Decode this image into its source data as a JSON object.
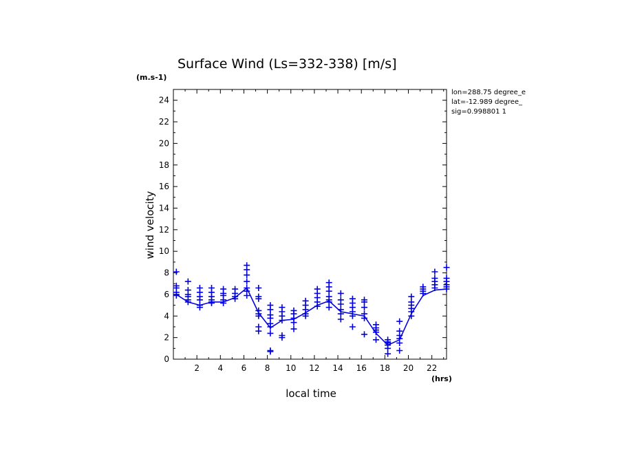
{
  "chart_data": {
    "type": "line",
    "title": "Surface Wind  (Ls=332-338) [m/s]",
    "y_unit": "(m.s-1)",
    "x_unit": "(hrs)",
    "xlabel": "local time",
    "ylabel": "wind velocity",
    "xlim": [
      0,
      23.25
    ],
    "ylim": [
      0,
      25
    ],
    "xticks": [
      2,
      4,
      6,
      8,
      10,
      12,
      14,
      16,
      18,
      20,
      22
    ],
    "yticks": [
      0,
      2,
      4,
      6,
      8,
      10,
      12,
      14,
      16,
      18,
      20,
      22,
      24
    ],
    "info_lines": [
      "lon=288.75 degree_e",
      "lat=-12.989 degree_",
      "sig=0.998801 1"
    ],
    "color": "#0000e0",
    "series": [
      {
        "name": "mean",
        "x": [
          0.25,
          1.25,
          2.25,
          3.25,
          4.25,
          5.25,
          6.25,
          7.25,
          8.25,
          9.25,
          10.25,
          11.25,
          12.25,
          13.25,
          14.25,
          15.25,
          16.25,
          17.25,
          18.25,
          19.25,
          20.25,
          21.25,
          22.25,
          23.25
        ],
        "values": [
          6.0,
          5.3,
          5.0,
          5.3,
          5.3,
          5.7,
          6.6,
          4.3,
          2.9,
          3.6,
          3.7,
          4.3,
          5.0,
          5.4,
          4.4,
          4.2,
          4.0,
          2.4,
          1.3,
          1.8,
          4.2,
          5.9,
          6.4,
          6.5
        ]
      }
    ],
    "scatter": [
      {
        "x": 0.25,
        "y": [
          8.1,
          6.8,
          6.6,
          6.2,
          6.0,
          5.9
        ]
      },
      {
        "x": 1.25,
        "y": [
          7.2,
          6.4,
          6.0,
          5.8,
          5.5,
          5.3
        ]
      },
      {
        "x": 2.25,
        "y": [
          6.6,
          6.2,
          5.8,
          5.5,
          5.0,
          4.8
        ]
      },
      {
        "x": 3.25,
        "y": [
          6.6,
          6.2,
          5.8,
          5.5,
          5.3,
          5.2
        ]
      },
      {
        "x": 4.25,
        "y": [
          6.5,
          6.1,
          5.9,
          5.5,
          5.2
        ]
      },
      {
        "x": 5.25,
        "y": [
          6.5,
          6.1,
          5.8,
          5.6
        ]
      },
      {
        "x": 6.25,
        "y": [
          8.7,
          8.3,
          7.8,
          7.2,
          6.6,
          6.3,
          5.9
        ]
      },
      {
        "x": 7.25,
        "y": [
          6.6,
          5.8,
          5.6,
          4.5,
          4.2,
          4.0,
          3.0,
          2.6
        ]
      },
      {
        "x": 8.25,
        "y": [
          5.0,
          4.6,
          4.1,
          3.8,
          3.3,
          3.0,
          2.4,
          0.8,
          0.7
        ]
      },
      {
        "x": 9.25,
        "y": [
          4.8,
          4.4,
          4.0,
          3.6,
          2.2,
          2.0
        ]
      },
      {
        "x": 10.25,
        "y": [
          4.5,
          4.2,
          3.8,
          3.4,
          2.8
        ]
      },
      {
        "x": 11.25,
        "y": [
          5.4,
          5.0,
          4.6,
          4.2,
          4.0
        ]
      },
      {
        "x": 12.25,
        "y": [
          6.5,
          6.1,
          5.7,
          5.3,
          4.9
        ]
      },
      {
        "x": 13.25,
        "y": [
          7.1,
          6.7,
          6.3,
          5.8,
          5.5,
          5.3,
          4.8
        ]
      },
      {
        "x": 14.25,
        "y": [
          6.1,
          5.5,
          5.1,
          4.6,
          4.2,
          3.7
        ]
      },
      {
        "x": 15.25,
        "y": [
          5.6,
          5.2,
          4.8,
          4.4,
          4.0,
          3.0
        ]
      },
      {
        "x": 16.25,
        "y": [
          5.5,
          5.3,
          4.8,
          4.2,
          3.8,
          2.3
        ]
      },
      {
        "x": 17.25,
        "y": [
          3.2,
          2.9,
          2.7,
          2.5,
          1.8
        ]
      },
      {
        "x": 18.25,
        "y": [
          1.8,
          1.6,
          1.5,
          1.3,
          1.0,
          0.5
        ]
      },
      {
        "x": 19.25,
        "y": [
          3.5,
          2.6,
          2.2,
          1.9,
          1.5,
          0.8
        ]
      },
      {
        "x": 20.25,
        "y": [
          5.8,
          5.3,
          5.0,
          4.7,
          4.4,
          4.0
        ]
      },
      {
        "x": 21.25,
        "y": [
          6.7,
          6.5,
          6.3,
          6.1
        ]
      },
      {
        "x": 22.25,
        "y": [
          8.1,
          7.5,
          7.2,
          6.9,
          6.6
        ]
      },
      {
        "x": 23.25,
        "y": [
          8.5,
          7.5,
          7.2,
          6.9,
          6.7,
          6.5
        ]
      }
    ]
  }
}
